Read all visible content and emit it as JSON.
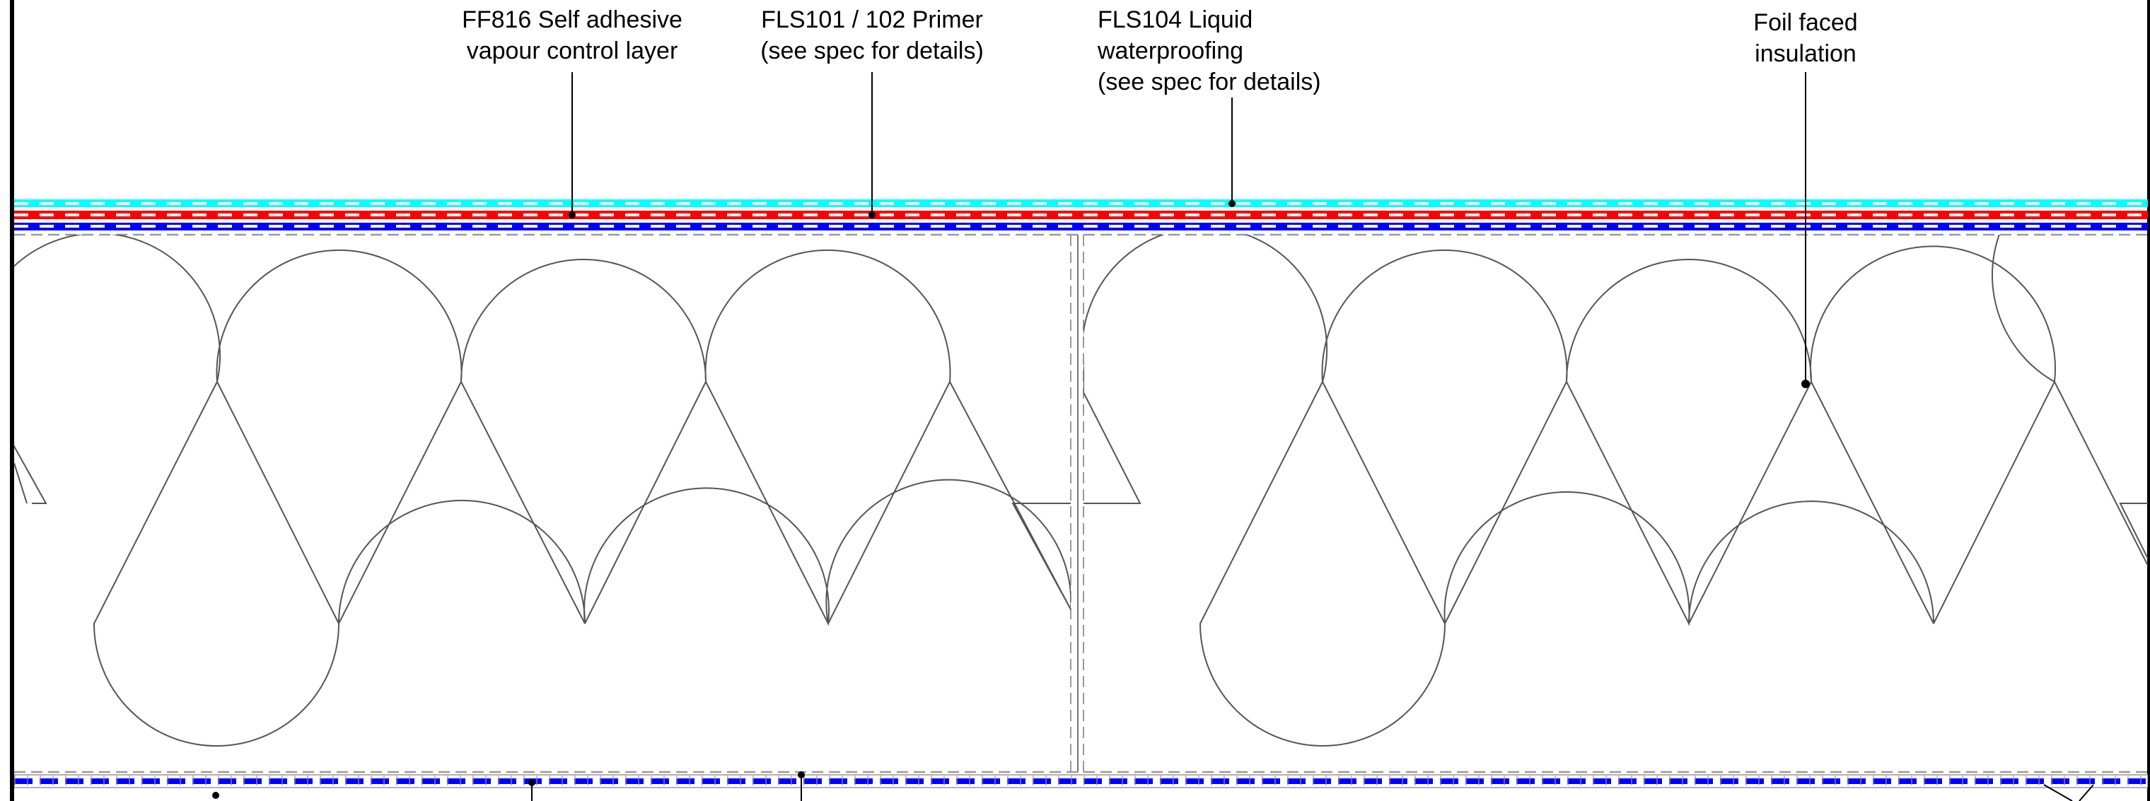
{
  "callouts": {
    "vcl": {
      "lines": [
        "FF816 Self adhesive",
        "vapour control layer"
      ]
    },
    "primer": {
      "lines": [
        "FLS101 / 102 Primer",
        "(see spec for details)"
      ]
    },
    "liquid": {
      "lines": [
        "FLS104 Liquid",
        "waterproofing",
        "(see spec for details)"
      ]
    },
    "insulation": {
      "lines": [
        "Foil faced",
        "insulation"
      ]
    }
  },
  "colors": {
    "line": "#000000",
    "insulation_outline": "#555555",
    "waterproofing": "#00ffff",
    "primer": "#ff0000",
    "vapour_control_layer": "#0000ff",
    "foil_dash": "#999999",
    "hatch": "#0000ff"
  }
}
